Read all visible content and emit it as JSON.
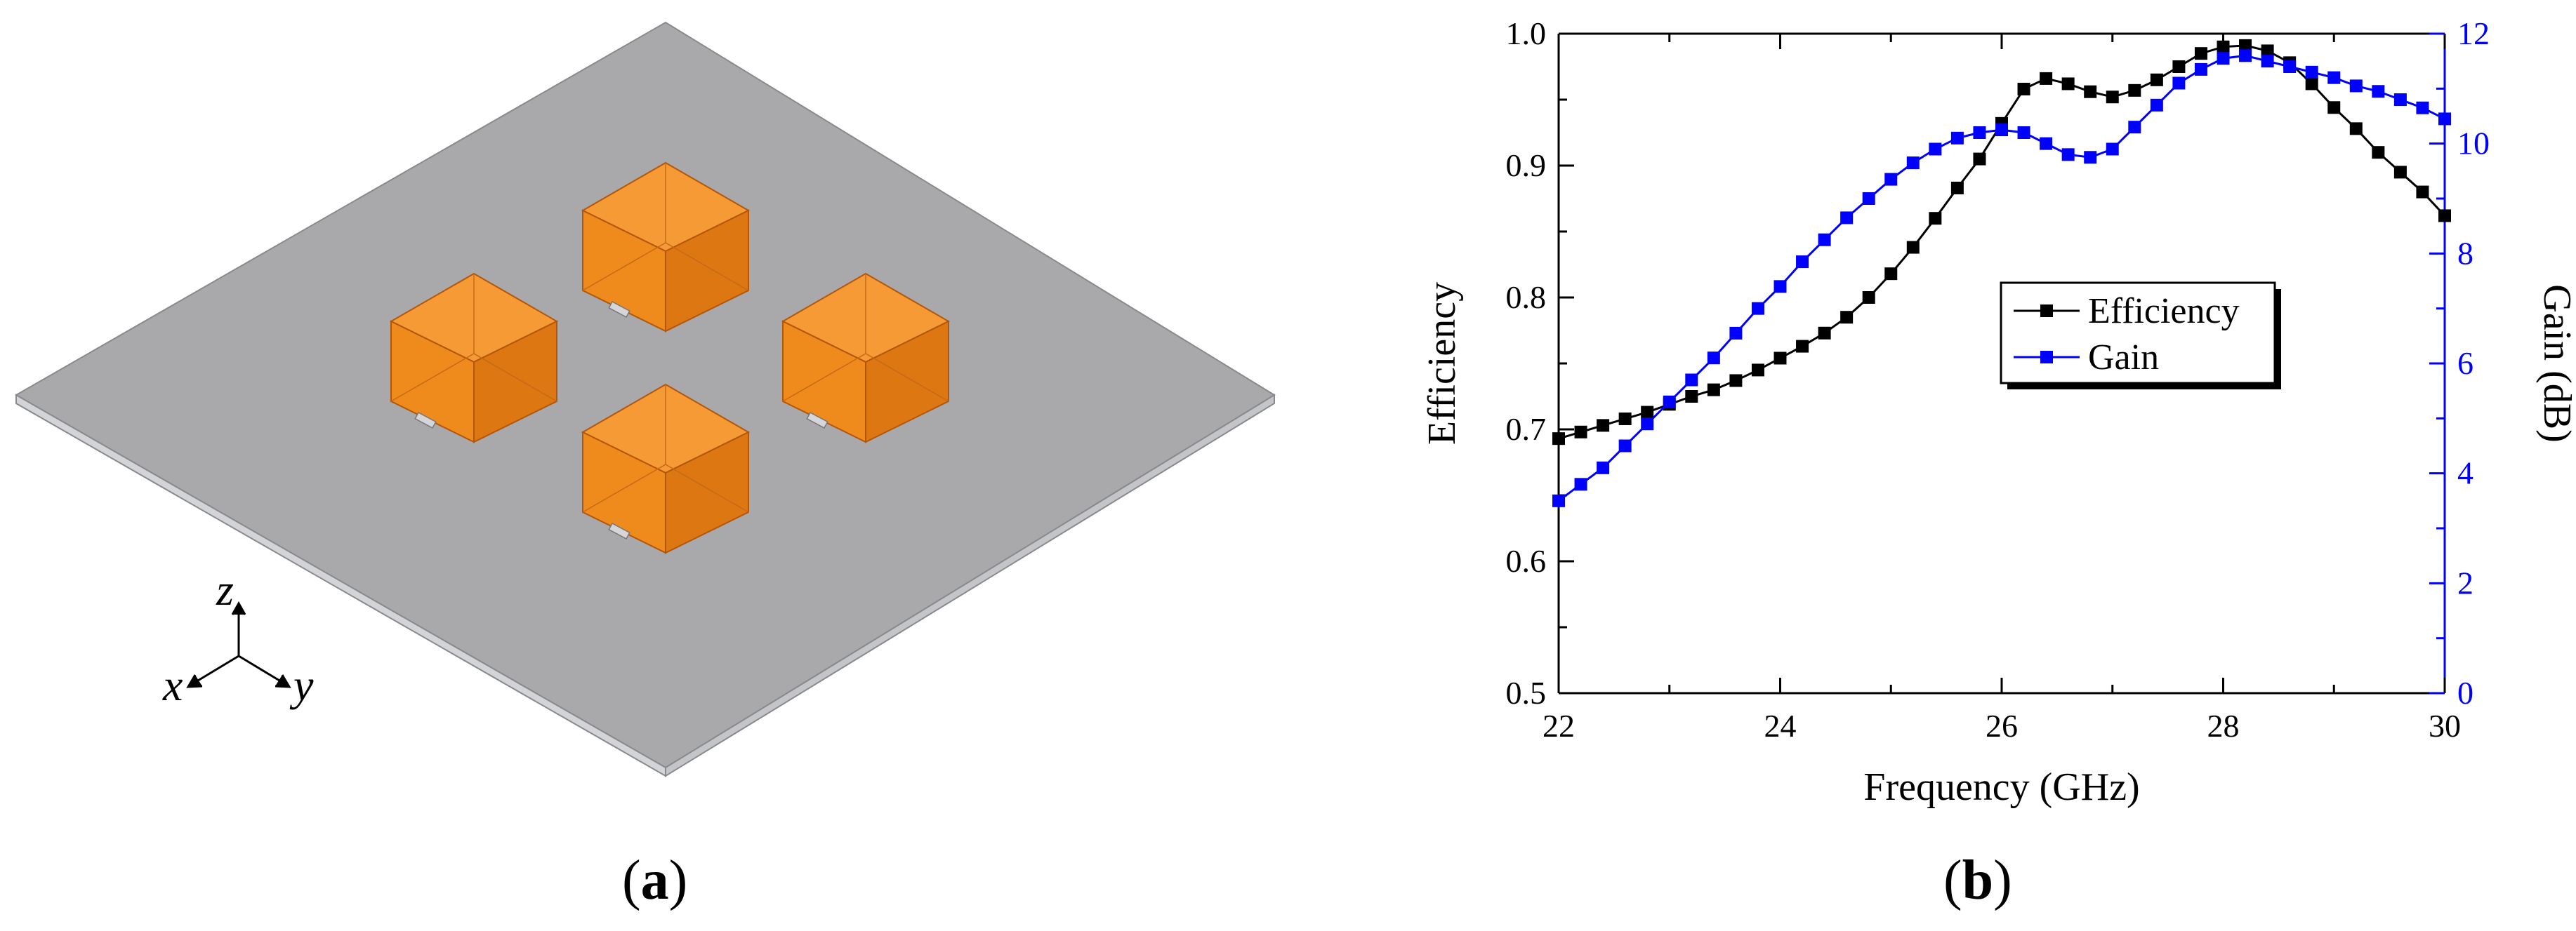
{
  "panel_a": {
    "label_open": "(",
    "label_letter": "a",
    "label_close": ")",
    "axes": {
      "z": "z",
      "x": "x",
      "y": "y"
    },
    "colors": {
      "substrate": "#a9a9ab",
      "substrate_edge": "#cfd0d4",
      "cube_front": "#ef8a1c",
      "cube_top": "#f59a35",
      "cube_side": "#dc7712"
    }
  },
  "panel_b": {
    "label_open": "(",
    "label_letter": "b",
    "label_close": ")"
  },
  "chart_data": {
    "type": "line",
    "xlabel": "Frequency (GHz)",
    "ylabel": "Efficiency",
    "y2label": "Gain (dB)",
    "xlim": [
      22,
      30
    ],
    "ylim": [
      0.5,
      1.0
    ],
    "y2lim": [
      0,
      12
    ],
    "xticks": [
      "22",
      "24",
      "26",
      "28",
      "30"
    ],
    "yticks": [
      "0.5",
      "0.6",
      "0.7",
      "0.8",
      "0.9",
      "1.0"
    ],
    "y2ticks": [
      "0",
      "2",
      "4",
      "6",
      "8",
      "10",
      "12"
    ],
    "legend": {
      "position": "center-right",
      "entries": [
        "Efficiency",
        "Gain"
      ]
    },
    "series": [
      {
        "name": "Efficiency",
        "axis": "left",
        "color": "#000000",
        "x": [
          22.0,
          22.2,
          22.4,
          22.6,
          22.8,
          23.0,
          23.2,
          23.4,
          23.6,
          23.8,
          24.0,
          24.2,
          24.4,
          24.6,
          24.8,
          25.0,
          25.2,
          25.4,
          25.6,
          25.8,
          26.0,
          26.2,
          26.4,
          26.6,
          26.8,
          27.0,
          27.2,
          27.4,
          27.6,
          27.8,
          28.0,
          28.2,
          28.4,
          28.6,
          28.8,
          29.0,
          29.2,
          29.4,
          29.6,
          29.8,
          30.0
        ],
        "values": [
          0.693,
          0.698,
          0.703,
          0.708,
          0.713,
          0.719,
          0.725,
          0.73,
          0.737,
          0.745,
          0.754,
          0.763,
          0.773,
          0.785,
          0.8,
          0.818,
          0.838,
          0.86,
          0.883,
          0.905,
          0.932,
          0.958,
          0.966,
          0.962,
          0.956,
          0.952,
          0.957,
          0.965,
          0.975,
          0.985,
          0.99,
          0.991,
          0.987,
          0.978,
          0.962,
          0.944,
          0.928,
          0.91,
          0.895,
          0.88,
          0.862
        ]
      },
      {
        "name": "Gain",
        "axis": "right",
        "color": "#0000ff",
        "x": [
          22.0,
          22.2,
          22.4,
          22.6,
          22.8,
          23.0,
          23.2,
          23.4,
          23.6,
          23.8,
          24.0,
          24.2,
          24.4,
          24.6,
          24.8,
          25.0,
          25.2,
          25.4,
          25.6,
          25.8,
          26.0,
          26.2,
          26.4,
          26.6,
          26.8,
          27.0,
          27.2,
          27.4,
          27.6,
          27.8,
          28.0,
          28.2,
          28.4,
          28.6,
          28.8,
          29.0,
          29.2,
          29.4,
          29.6,
          29.8,
          30.0
        ],
        "values": [
          3.5,
          3.8,
          4.1,
          4.5,
          4.9,
          5.3,
          5.7,
          6.1,
          6.55,
          7.0,
          7.4,
          7.85,
          8.25,
          8.65,
          9.0,
          9.35,
          9.65,
          9.9,
          10.1,
          10.2,
          10.25,
          10.2,
          10.0,
          9.8,
          9.75,
          9.9,
          10.3,
          10.7,
          11.1,
          11.35,
          11.55,
          11.6,
          11.5,
          11.4,
          11.3,
          11.2,
          11.05,
          10.95,
          10.8,
          10.65,
          10.45
        ]
      }
    ]
  }
}
